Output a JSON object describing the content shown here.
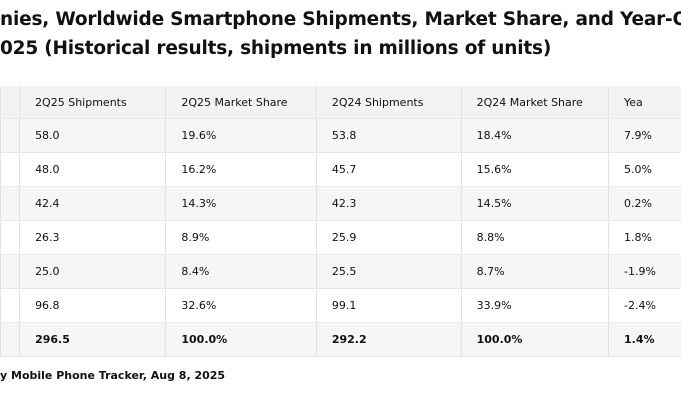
{
  "header": {
    "title_lines": [
      "nies, Worldwide Smartphone Shipments, Market Share, and Year-Over",
      "025 (Historical results, shipments in millions of units)"
    ]
  },
  "table": {
    "columns": [
      "2Q25 Shipments",
      "2Q25 Market Share",
      "2Q24 Shipments",
      "2Q24 Market Share",
      "Yea"
    ],
    "rows": [
      [
        "58.0",
        "19.6%",
        "53.8",
        "18.4%",
        "7.9%"
      ],
      [
        "48.0",
        "16.2%",
        "45.7",
        "15.6%",
        "5.0%"
      ],
      [
        "42.4",
        "14.3%",
        "42.3",
        "14.5%",
        "0.2%"
      ],
      [
        "26.3",
        "8.9%",
        "25.9",
        "8.8%",
        "1.8%"
      ],
      [
        "25.0",
        "8.4%",
        "25.5",
        "8.7%",
        "-1.9%"
      ],
      [
        "96.8",
        "32.6%",
        "99.1",
        "33.9%",
        "-2.4%"
      ],
      [
        "296.5",
        "100.0%",
        "292.2",
        "100.0%",
        "1.4%"
      ]
    ]
  },
  "footer": {
    "source": "y Mobile Phone Tracker, Aug 8, 2025"
  }
}
